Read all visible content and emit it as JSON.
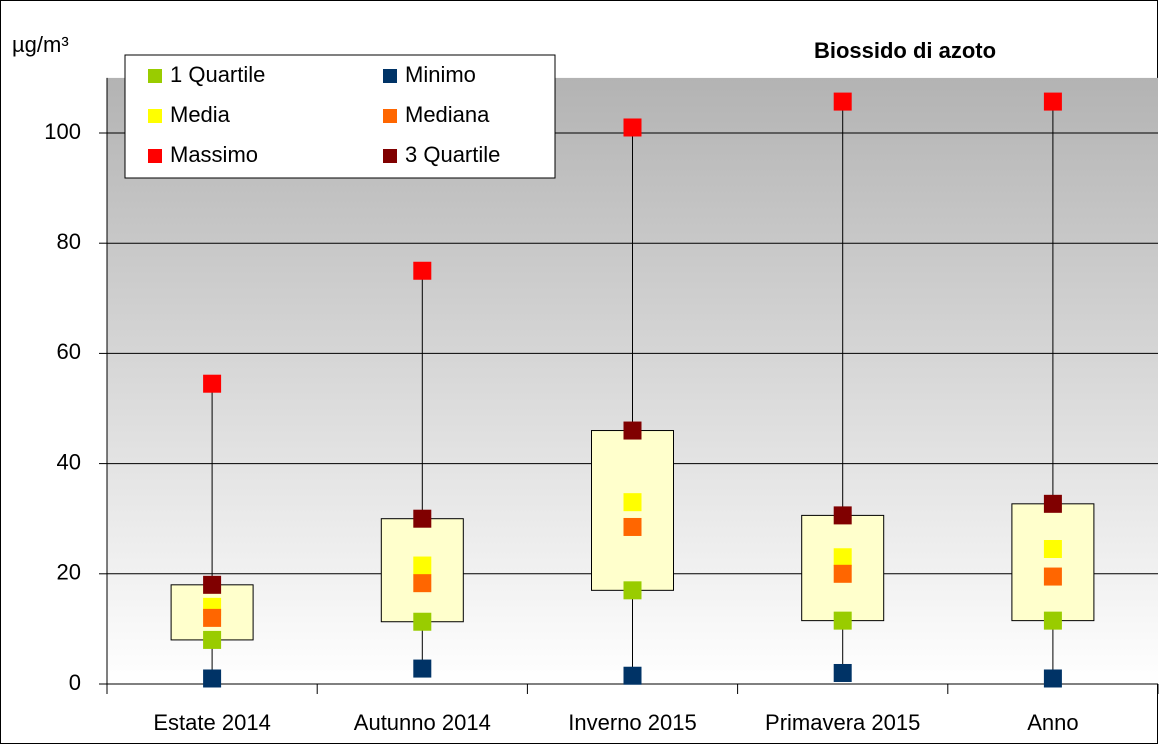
{
  "chart_data": {
    "type": "box",
    "title": "Biossido di azoto",
    "y_label": "µg/m³",
    "categories": [
      "Estate 2014",
      "Autunno 2014",
      "Inverno 2015",
      "Primavera 2015",
      "Anno"
    ],
    "series": [
      {
        "name": "1 Quartile",
        "color": "#99cc00",
        "values": [
          8,
          11.3,
          17,
          11.5,
          11.5
        ]
      },
      {
        "name": "Minimo",
        "color": "#003366",
        "values": [
          1,
          2.8,
          1.5,
          2,
          1
        ]
      },
      {
        "name": "Media",
        "color": "#ffff00",
        "values": [
          14,
          21.5,
          33,
          23,
          24.5
        ]
      },
      {
        "name": "Mediana",
        "color": "#ff6600",
        "values": [
          12,
          18.3,
          28.5,
          20,
          19.5
        ]
      },
      {
        "name": "Massimo",
        "color": "#ff0000",
        "values": [
          54.5,
          75,
          101,
          105.7,
          105.7
        ]
      },
      {
        "name": "3 Quartile",
        "color": "#800000",
        "values": [
          18,
          30,
          46,
          30.6,
          32.7
        ]
      }
    ],
    "box_color": "#ffffcc",
    "ylim": [
      0,
      110
    ],
    "yticks": [
      0,
      20,
      40,
      60,
      80,
      100
    ],
    "grid": true
  }
}
